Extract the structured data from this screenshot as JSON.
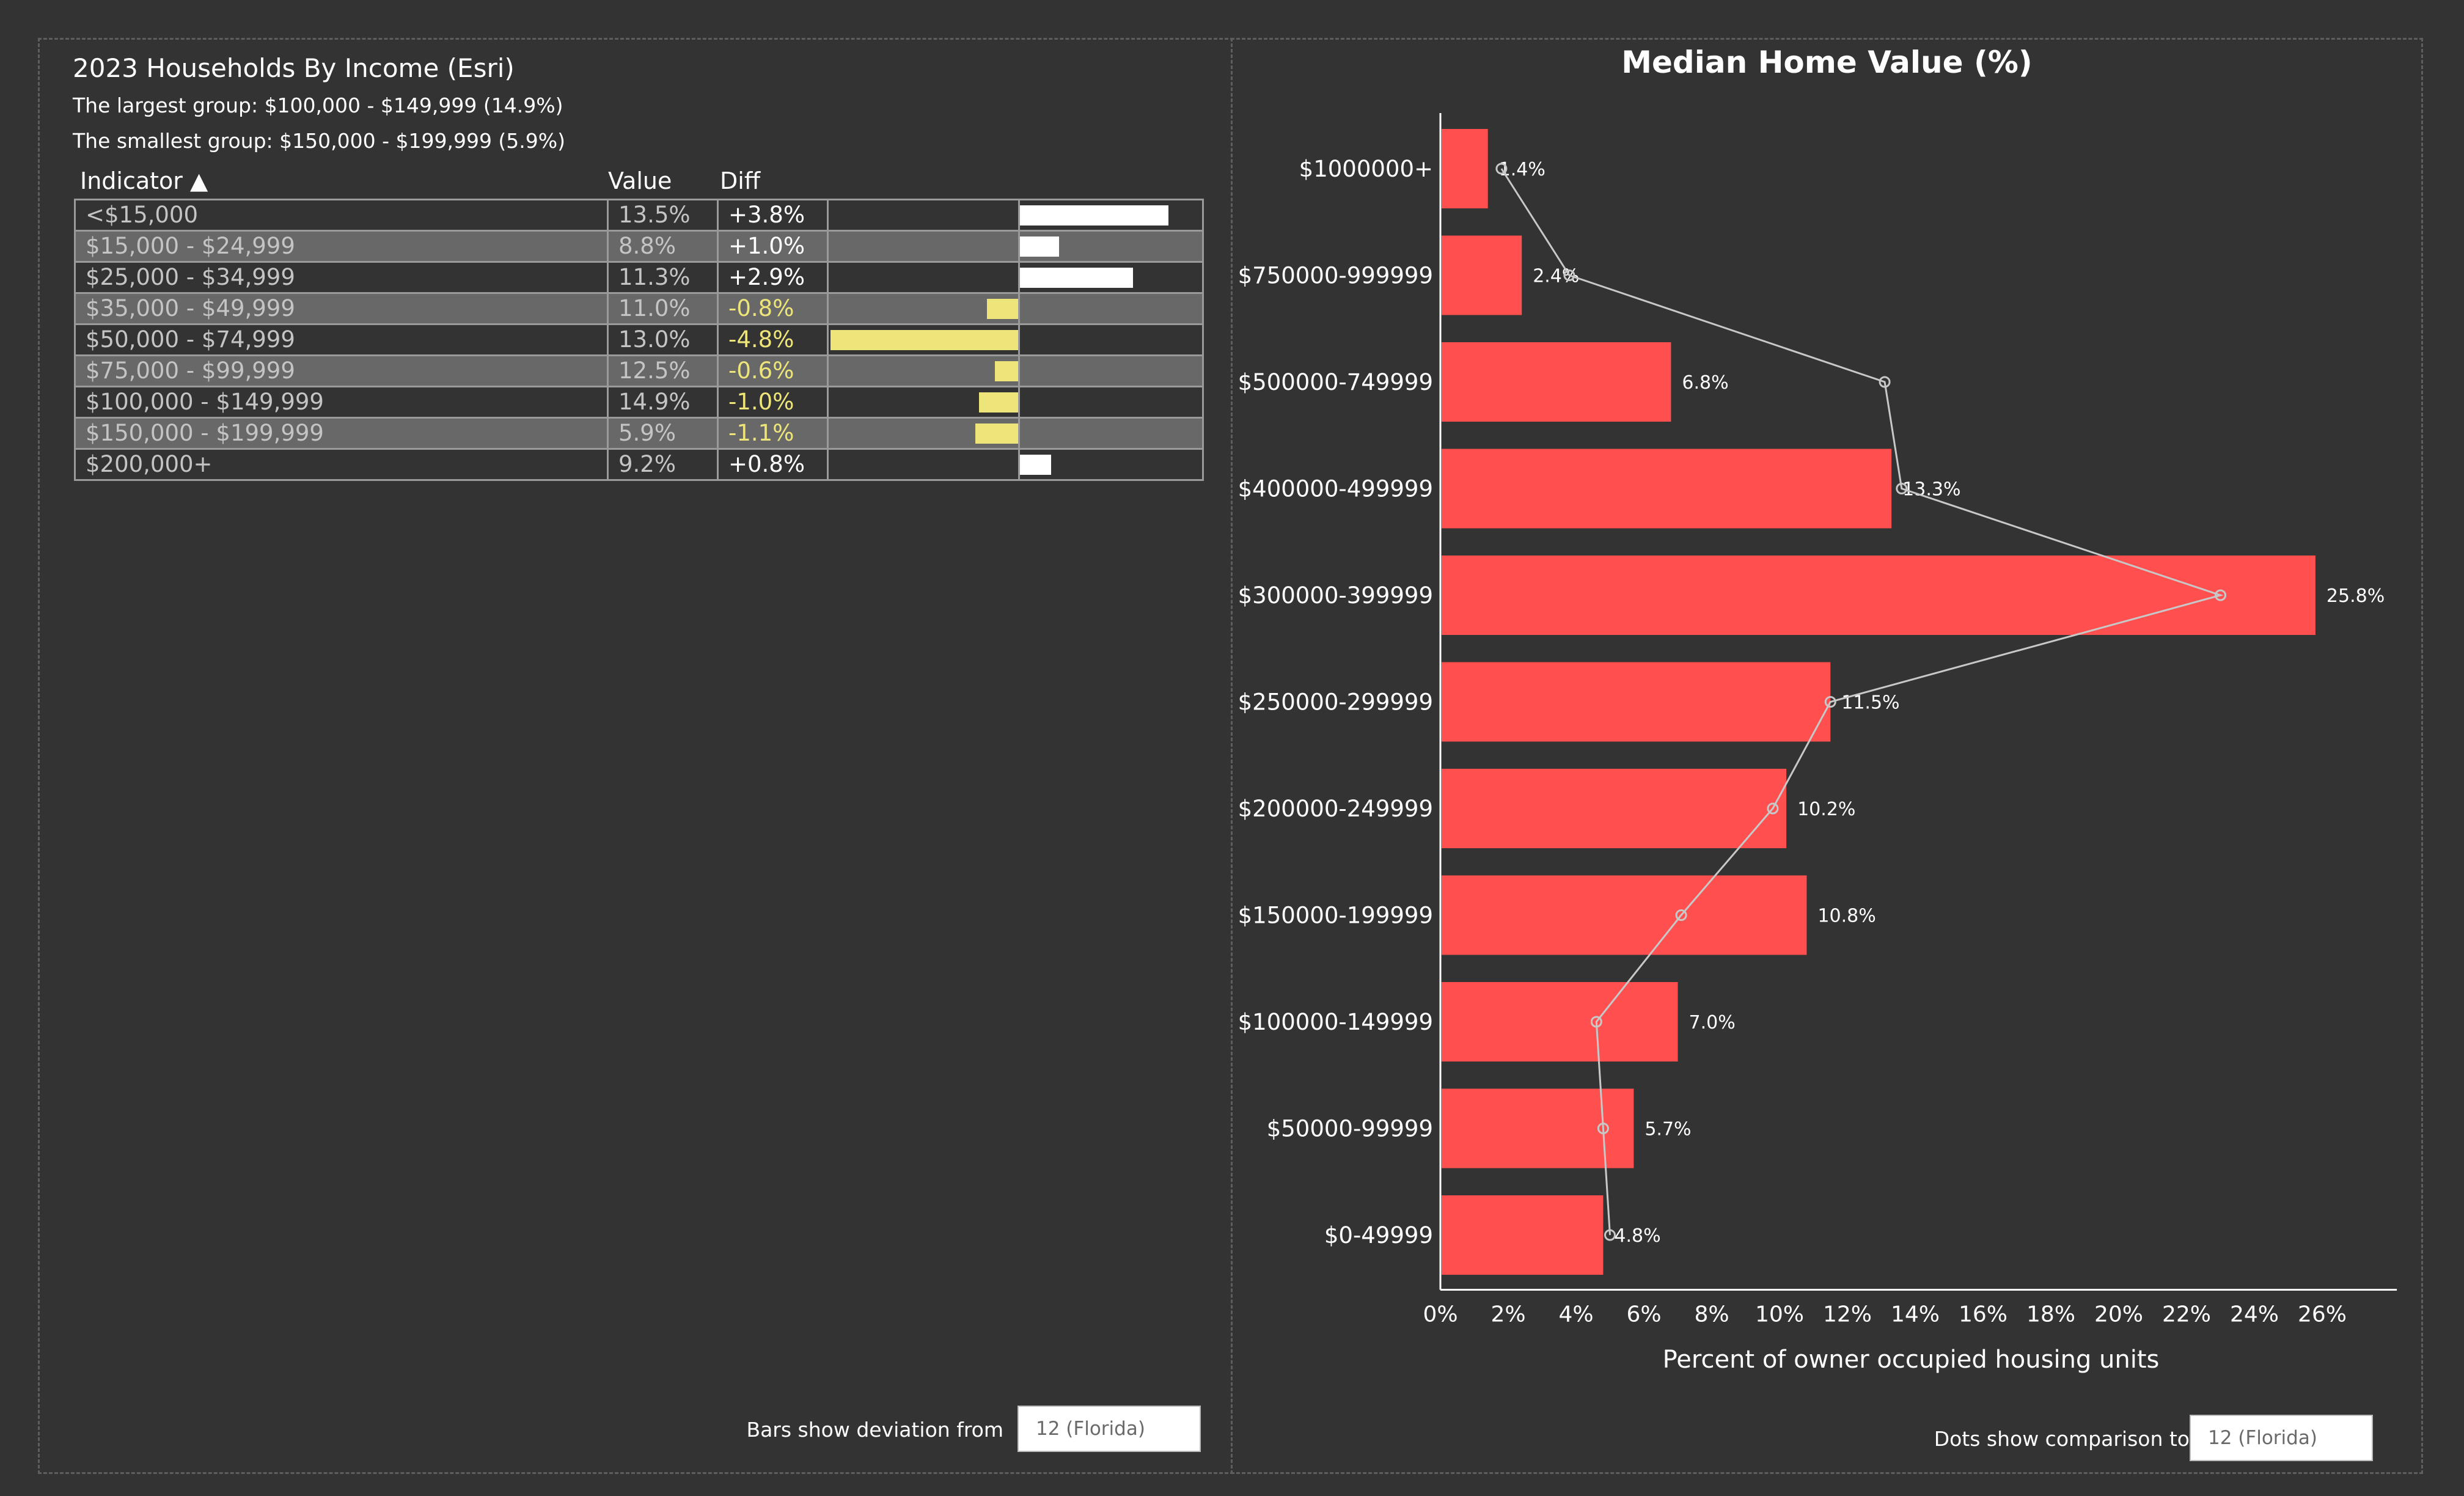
{
  "income_panel": {
    "title": "2023 Households By Income (Esri)",
    "largest": "The largest group: $100,000 - $149,999 (14.9%)",
    "smallest": "The smallest group: $150,000 - $199,999 (5.9%)",
    "headers": {
      "indicator": "Indicator ▲",
      "value": "Value",
      "diff": "Diff"
    },
    "rows": [
      {
        "indicator": "<$15,000",
        "value": "13.5%",
        "diff": "+3.8%",
        "dev": 3.8
      },
      {
        "indicator": "$15,000 - $24,999",
        "value": "8.8%",
        "diff": "+1.0%",
        "dev": 1.0
      },
      {
        "indicator": "$25,000 - $34,999",
        "value": "11.3%",
        "diff": "+2.9%",
        "dev": 2.9
      },
      {
        "indicator": "$35,000 - $49,999",
        "value": "11.0%",
        "diff": "-0.8%",
        "dev": -0.8
      },
      {
        "indicator": "$50,000 - $74,999",
        "value": "13.0%",
        "diff": "-4.8%",
        "dev": -4.8
      },
      {
        "indicator": "$75,000 - $99,999",
        "value": "12.5%",
        "diff": "-0.6%",
        "dev": -0.6
      },
      {
        "indicator": "$100,000 - $149,999",
        "value": "14.9%",
        "diff": "-1.0%",
        "dev": -1.0
      },
      {
        "indicator": "$150,000 - $199,999",
        "value": "5.9%",
        "diff": "-1.1%",
        "dev": -1.1
      },
      {
        "indicator": "$200,000+",
        "value": "9.2%",
        "diff": "+0.8%",
        "dev": 0.8
      }
    ],
    "deviation_label": "Bars show deviation from",
    "deviation_value": "12 (Florida)"
  },
  "chart_panel": {
    "comparison_label": "Dots show comparison to",
    "comparison_value": "12 (Florida)"
  },
  "colors": {
    "background": "#333333",
    "bar": "#ff4f4f",
    "positive": "#ffffff",
    "negative": "#ede57a",
    "dots": "#c8c8c8"
  },
  "chart_data": {
    "type": "bar",
    "orientation": "horizontal",
    "title": "Median Home Value (%)",
    "xlabel": "Percent of owner occupied housing units",
    "ylabel": "",
    "xlim": [
      0,
      28
    ],
    "xticks": [
      "0%",
      "2%",
      "4%",
      "6%",
      "8%",
      "10%",
      "12%",
      "14%",
      "16%",
      "18%",
      "20%",
      "22%",
      "24%",
      "26%"
    ],
    "categories": [
      "$1000000+",
      "$750000-999999",
      "$500000-749999",
      "$400000-499999",
      "$300000-399999",
      "$250000-299999",
      "$200000-249999",
      "$150000-199999",
      "$100000-149999",
      "$50000-99999",
      "$0-49999"
    ],
    "values": [
      1.4,
      2.4,
      6.8,
      13.3,
      25.8,
      11.5,
      10.2,
      10.8,
      7.0,
      5.7,
      4.8
    ],
    "value_labels": [
      "1.4%",
      "2.4%",
      "6.8%",
      "13.3%",
      "25.8%",
      "11.5%",
      "10.2%",
      "10.8%",
      "7.0%",
      "5.7%",
      "4.8%"
    ],
    "comparison": [
      1.8,
      3.8,
      13.1,
      13.6,
      23.0,
      11.5,
      9.8,
      7.1,
      4.6,
      4.8,
      5.0
    ],
    "grid": false,
    "legend": "none"
  }
}
